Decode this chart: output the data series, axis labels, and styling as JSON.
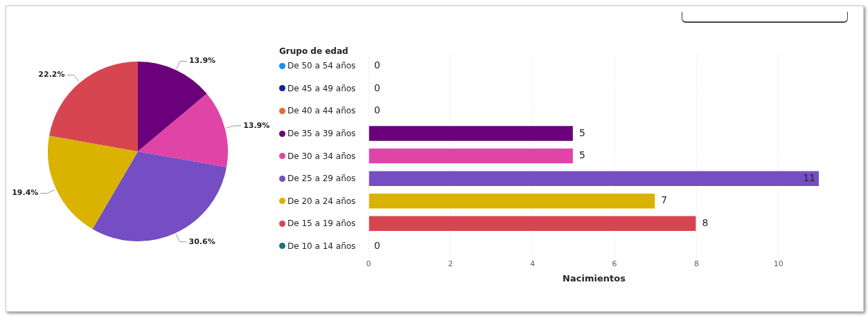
{
  "chart_data": [
    {
      "type": "pie",
      "categories": [
        null,
        null,
        null,
        null,
        null
      ],
      "values": [
        13.9,
        13.9,
        30.6,
        19.4,
        22.2
      ],
      "colors": [
        "#6b007b",
        "#e044a7",
        "#744ec2",
        "#d9b300",
        "#d64550"
      ],
      "value_labels": [
        "13.9%",
        "13.9%",
        "30.6%",
        "19.4%",
        "22.2%"
      ],
      "legend": false
    },
    {
      "type": "bar",
      "orientation": "horizontal",
      "legend_title": "Grupo de edad",
      "xlabel": "Nacimientos",
      "categories": [
        "De 50 a 54 años",
        "De 45 a 49 años",
        "De 40 a 44 años",
        "De 35 a 39 años",
        "De 30 a 34 años",
        "De 25 a 29 años",
        "De 20 a 24 años",
        "De 15 a 19 años",
        "De 10 a 14 años"
      ],
      "values": [
        0,
        0,
        0,
        5,
        5,
        11,
        7,
        8,
        0
      ],
      "colors": [
        "#118dff",
        "#12239e",
        "#e66c37",
        "#6b007b",
        "#e044a7",
        "#744ec2",
        "#d9b300",
        "#d64550",
        "#197278"
      ],
      "xlim": [
        0,
        11
      ],
      "xticks": [
        0,
        2,
        4,
        6,
        8,
        10
      ],
      "grid": "x",
      "data_labels": true
    }
  ]
}
